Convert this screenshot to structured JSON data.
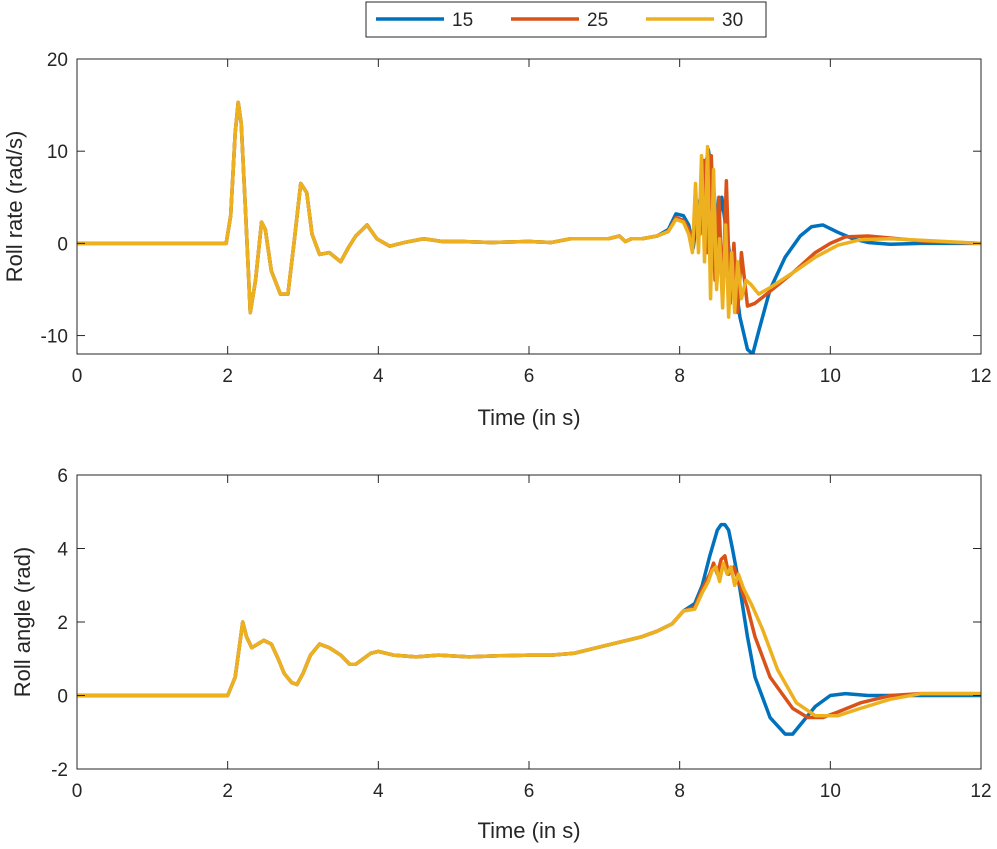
{
  "legend": {
    "entries": [
      {
        "label": "15",
        "color": "#0072BD"
      },
      {
        "label": "25",
        "color": "#D95319"
      },
      {
        "label": "30",
        "color": "#EDB120"
      }
    ]
  },
  "chart_data": [
    {
      "type": "line",
      "title": "",
      "xlabel": "Time (in s)",
      "ylabel": "Roll rate (rad/s)",
      "xlim": [
        0,
        12
      ],
      "ylim": [
        -12,
        20
      ],
      "xticks": [
        0,
        2,
        4,
        6,
        8,
        10,
        12
      ],
      "yticks": [
        -10,
        0,
        10,
        20
      ],
      "xtick_labels": [
        "0",
        "2",
        "4",
        "6",
        "8",
        "10",
        "12"
      ],
      "ytick_labels": [
        "-10",
        "0",
        "10",
        "20"
      ],
      "grid": false,
      "series": [
        {
          "name": "15",
          "color": "#0072BD",
          "x": [
            0,
            1.98,
            2.04,
            2.1,
            2.14,
            2.18,
            2.24,
            2.3,
            2.37,
            2.45,
            2.5,
            2.58,
            2.7,
            2.8,
            2.88,
            2.97,
            3.05,
            3.12,
            3.22,
            3.35,
            3.5,
            3.6,
            3.7,
            3.85,
            3.98,
            4.15,
            4.35,
            4.6,
            4.85,
            5.1,
            5.5,
            6.0,
            6.3,
            6.55,
            6.85,
            7.05,
            7.2,
            7.28,
            7.36,
            7.5,
            7.7,
            7.85,
            7.95,
            8.05,
            8.12,
            8.18,
            8.24,
            8.3,
            8.38,
            8.44,
            8.5,
            8.56,
            8.6,
            8.66,
            8.72,
            8.8,
            8.9,
            8.97,
            9.05,
            9.2,
            9.4,
            9.6,
            9.75,
            9.9,
            10.1,
            10.3,
            10.5,
            10.8,
            11.2,
            12.0
          ],
          "y": [
            0,
            0,
            3,
            12,
            15.3,
            13,
            3,
            -7.5,
            -4,
            2.3,
            1.5,
            -3,
            -5.5,
            -5.5,
            0,
            6.5,
            5.5,
            1,
            -1.2,
            -1,
            -2,
            -0.5,
            0.8,
            2.0,
            0.5,
            -0.3,
            0.1,
            0.5,
            0.2,
            0.2,
            0.1,
            0.2,
            0.1,
            0.5,
            0.5,
            0.5,
            0.8,
            0.2,
            0.5,
            0.5,
            0.8,
            1.5,
            3.2,
            3.0,
            2.0,
            -0.5,
            3.5,
            6.0,
            10.2,
            7.0,
            1.5,
            5.0,
            2.5,
            -1.0,
            -3.0,
            -8.0,
            -11.5,
            -12.0,
            -9.5,
            -5.0,
            -1.5,
            0.8,
            1.8,
            2.0,
            1.2,
            0.5,
            0.1,
            -0.1,
            0.0,
            0.0
          ]
        },
        {
          "name": "25",
          "color": "#D95319",
          "x": [
            0,
            1.98,
            2.04,
            2.1,
            2.14,
            2.18,
            2.24,
            2.3,
            2.37,
            2.45,
            2.5,
            2.58,
            2.7,
            2.8,
            2.88,
            2.97,
            3.05,
            3.12,
            3.22,
            3.35,
            3.5,
            3.6,
            3.7,
            3.85,
            3.98,
            4.15,
            4.35,
            4.6,
            4.85,
            5.1,
            5.5,
            6.0,
            6.3,
            6.55,
            6.85,
            7.05,
            7.2,
            7.28,
            7.36,
            7.5,
            7.7,
            7.85,
            7.95,
            8.05,
            8.12,
            8.17,
            8.22,
            8.27,
            8.32,
            8.37,
            8.42,
            8.47,
            8.52,
            8.57,
            8.62,
            8.67,
            8.72,
            8.77,
            8.82,
            8.9,
            9.0,
            9.2,
            9.5,
            9.8,
            10.0,
            10.2,
            10.5,
            10.9,
            11.3,
            12.0
          ],
          "y": [
            0,
            0,
            3,
            12,
            15.3,
            13,
            3,
            -7.5,
            -4,
            2.3,
            1.5,
            -3,
            -5.5,
            -5.5,
            0,
            6.5,
            5.5,
            1,
            -1.2,
            -1,
            -2,
            -0.5,
            0.8,
            2.0,
            0.5,
            -0.3,
            0.1,
            0.5,
            0.2,
            0.2,
            0.1,
            0.2,
            0.1,
            0.5,
            0.5,
            0.5,
            0.8,
            0.2,
            0.5,
            0.5,
            0.8,
            1.3,
            2.8,
            2.5,
            1.5,
            -0.5,
            4.5,
            1.0,
            9.0,
            -1.0,
            9.5,
            -4.0,
            5.0,
            -6.0,
            6.8,
            -6.5,
            0.0,
            -7.5,
            -1.0,
            -6.8,
            -6.5,
            -5.2,
            -3.2,
            -1.0,
            0.0,
            0.7,
            0.8,
            0.5,
            0.2,
            0.0
          ]
        },
        {
          "name": "30",
          "color": "#EDB120",
          "x": [
            0,
            1.98,
            2.04,
            2.1,
            2.14,
            2.18,
            2.24,
            2.3,
            2.37,
            2.45,
            2.5,
            2.58,
            2.7,
            2.8,
            2.88,
            2.97,
            3.05,
            3.12,
            3.22,
            3.35,
            3.5,
            3.6,
            3.7,
            3.85,
            3.98,
            4.15,
            4.35,
            4.6,
            4.85,
            5.1,
            5.5,
            6.0,
            6.3,
            6.55,
            6.85,
            7.05,
            7.2,
            7.28,
            7.36,
            7.5,
            7.7,
            7.85,
            7.95,
            8.05,
            8.12,
            8.17,
            8.21,
            8.25,
            8.29,
            8.33,
            8.37,
            8.41,
            8.45,
            8.49,
            8.53,
            8.57,
            8.61,
            8.65,
            8.69,
            8.73,
            8.77,
            8.82,
            8.88,
            8.95,
            9.05,
            9.2,
            9.5,
            9.8,
            10.1,
            10.4,
            10.8,
            11.3,
            12.0
          ],
          "y": [
            0,
            0,
            3,
            12,
            15.3,
            13,
            3,
            -7.5,
            -4,
            2.3,
            1.5,
            -3,
            -5.5,
            -5.5,
            0,
            6.5,
            5.5,
            1,
            -1.2,
            -1,
            -2,
            -0.5,
            0.8,
            2.0,
            0.5,
            -0.3,
            0.1,
            0.5,
            0.2,
            0.2,
            0.1,
            0.2,
            0.1,
            0.5,
            0.5,
            0.5,
            0.8,
            0.2,
            0.5,
            0.5,
            0.8,
            1.3,
            2.6,
            2.3,
            1.0,
            -1.0,
            6.5,
            -1.0,
            9.5,
            -2.0,
            10.5,
            -6.0,
            8.0,
            -5.0,
            0.5,
            -7.0,
            2.0,
            -8.0,
            -1.0,
            -7.5,
            -2.0,
            -6.0,
            -4.0,
            -4.5,
            -5.5,
            -4.8,
            -3.2,
            -1.5,
            -0.2,
            0.4,
            0.5,
            0.3,
            0.0
          ]
        }
      ]
    },
    {
      "type": "line",
      "title": "",
      "xlabel": "Time (in s)",
      "ylabel": "Roll angle (rad)",
      "xlim": [
        0,
        12
      ],
      "ylim": [
        -2,
        6
      ],
      "xticks": [
        0,
        2,
        4,
        6,
        8,
        10,
        12
      ],
      "yticks": [
        -2,
        0,
        2,
        4,
        6
      ],
      "xtick_labels": [
        "0",
        "2",
        "4",
        "6",
        "8",
        "10",
        "12"
      ],
      "ytick_labels": [
        "-2",
        "0",
        "2",
        "4",
        "6"
      ],
      "grid": false,
      "series": [
        {
          "name": "15",
          "color": "#0072BD",
          "x": [
            0,
            2.0,
            2.1,
            2.2,
            2.25,
            2.32,
            2.4,
            2.48,
            2.58,
            2.67,
            2.75,
            2.85,
            2.92,
            3.0,
            3.1,
            3.22,
            3.35,
            3.5,
            3.62,
            3.7,
            3.8,
            3.9,
            4.0,
            4.2,
            4.5,
            4.8,
            5.2,
            5.6,
            6.0,
            6.3,
            6.6,
            6.9,
            7.2,
            7.5,
            7.7,
            7.9,
            8.05,
            8.2,
            8.3,
            8.4,
            8.5,
            8.55,
            8.6,
            8.65,
            8.7,
            8.8,
            8.9,
            9.0,
            9.2,
            9.4,
            9.5,
            9.6,
            9.8,
            10.0,
            10.2,
            10.5,
            10.8,
            11.2,
            12.0
          ],
          "y": [
            0,
            0,
            0.5,
            2.0,
            1.6,
            1.3,
            1.4,
            1.5,
            1.4,
            1.0,
            0.6,
            0.35,
            0.3,
            0.6,
            1.1,
            1.4,
            1.3,
            1.1,
            0.85,
            0.85,
            1.0,
            1.15,
            1.2,
            1.1,
            1.05,
            1.1,
            1.05,
            1.08,
            1.1,
            1.1,
            1.15,
            1.3,
            1.45,
            1.6,
            1.75,
            1.95,
            2.3,
            2.5,
            3.0,
            3.8,
            4.5,
            4.65,
            4.65,
            4.5,
            4.0,
            2.9,
            1.6,
            0.5,
            -0.6,
            -1.05,
            -1.05,
            -0.8,
            -0.3,
            0.0,
            0.05,
            0.0,
            0.0,
            0.0,
            0.0
          ]
        },
        {
          "name": "25",
          "color": "#D95319",
          "x": [
            0,
            2.0,
            2.1,
            2.2,
            2.25,
            2.32,
            2.4,
            2.48,
            2.58,
            2.67,
            2.75,
            2.85,
            2.92,
            3.0,
            3.1,
            3.22,
            3.35,
            3.5,
            3.62,
            3.7,
            3.8,
            3.9,
            4.0,
            4.2,
            4.5,
            4.8,
            5.2,
            5.6,
            6.0,
            6.3,
            6.6,
            6.9,
            7.2,
            7.5,
            7.7,
            7.9,
            8.05,
            8.2,
            8.3,
            8.4,
            8.45,
            8.5,
            8.55,
            8.6,
            8.65,
            8.72,
            8.8,
            8.9,
            9.0,
            9.2,
            9.5,
            9.7,
            9.9,
            10.1,
            10.4,
            10.8,
            11.2,
            11.6,
            12.0
          ],
          "y": [
            0,
            0,
            0.5,
            2.0,
            1.6,
            1.3,
            1.4,
            1.5,
            1.4,
            1.0,
            0.6,
            0.35,
            0.3,
            0.6,
            1.1,
            1.4,
            1.3,
            1.1,
            0.85,
            0.85,
            1.0,
            1.15,
            1.2,
            1.1,
            1.05,
            1.1,
            1.05,
            1.08,
            1.1,
            1.1,
            1.15,
            1.3,
            1.45,
            1.6,
            1.75,
            1.95,
            2.3,
            2.4,
            2.9,
            3.3,
            3.6,
            3.3,
            3.7,
            3.8,
            3.3,
            3.5,
            3.0,
            2.4,
            1.6,
            0.5,
            -0.35,
            -0.6,
            -0.6,
            -0.45,
            -0.2,
            0.0,
            0.05,
            0.05,
            0.05
          ]
        },
        {
          "name": "30",
          "color": "#EDB120",
          "x": [
            0,
            2.0,
            2.1,
            2.2,
            2.25,
            2.32,
            2.4,
            2.48,
            2.58,
            2.67,
            2.75,
            2.85,
            2.92,
            3.0,
            3.1,
            3.22,
            3.35,
            3.5,
            3.62,
            3.7,
            3.8,
            3.9,
            4.0,
            4.2,
            4.5,
            4.8,
            5.2,
            5.6,
            6.0,
            6.3,
            6.6,
            6.9,
            7.2,
            7.5,
            7.7,
            7.9,
            8.05,
            8.2,
            8.3,
            8.38,
            8.43,
            8.48,
            8.53,
            8.58,
            8.63,
            8.68,
            8.73,
            8.78,
            8.85,
            8.95,
            9.1,
            9.3,
            9.55,
            9.8,
            10.1,
            10.4,
            10.8,
            11.2,
            11.6,
            12.0
          ],
          "y": [
            0,
            0,
            0.5,
            2.0,
            1.6,
            1.3,
            1.4,
            1.5,
            1.4,
            1.0,
            0.6,
            0.35,
            0.3,
            0.6,
            1.1,
            1.4,
            1.3,
            1.1,
            0.85,
            0.85,
            1.0,
            1.15,
            1.2,
            1.1,
            1.05,
            1.1,
            1.05,
            1.08,
            1.1,
            1.1,
            1.15,
            1.3,
            1.45,
            1.6,
            1.75,
            1.95,
            2.3,
            2.35,
            2.8,
            3.1,
            3.4,
            3.5,
            3.1,
            3.6,
            3.3,
            3.5,
            3.0,
            3.3,
            2.9,
            2.5,
            1.8,
            0.7,
            -0.2,
            -0.55,
            -0.55,
            -0.35,
            -0.1,
            0.05,
            0.05,
            0.05
          ]
        }
      ]
    }
  ]
}
